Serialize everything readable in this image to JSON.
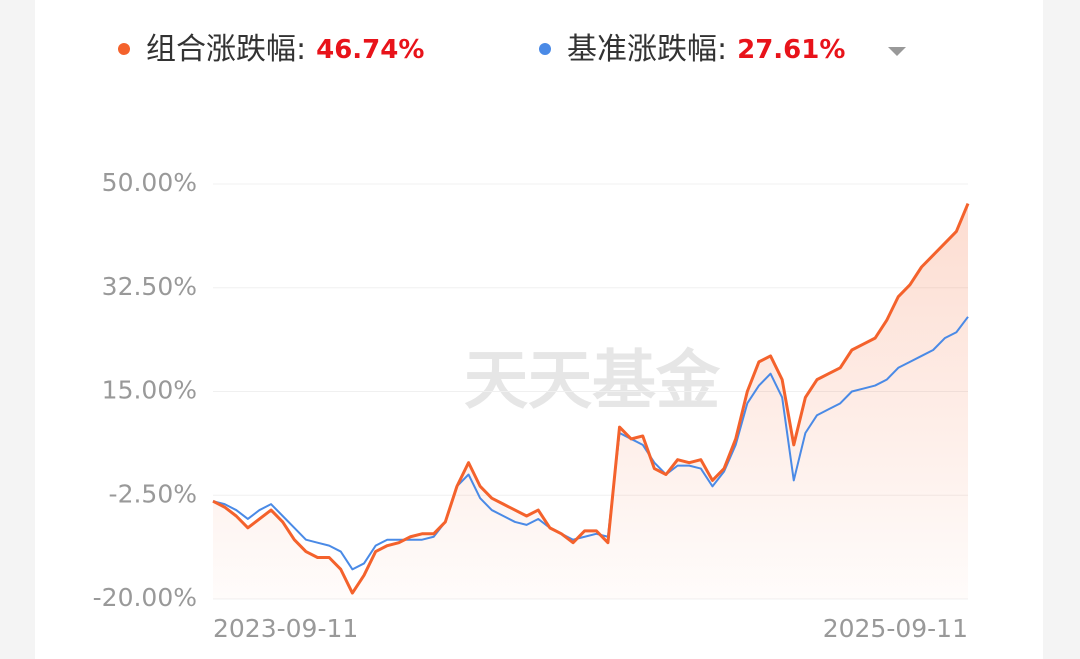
{
  "chart_data": {
    "type": "line",
    "watermark": "天天基金",
    "categories": [
      "2023-09-11",
      null,
      null,
      null,
      null,
      null,
      null,
      null,
      null,
      null,
      null,
      null,
      null,
      null,
      null,
      null,
      null,
      null,
      null,
      null,
      null,
      null,
      null,
      null,
      null,
      null,
      null,
      null,
      null,
      null,
      null,
      null,
      null,
      null,
      null,
      null,
      null,
      null,
      null,
      null,
      null,
      null,
      null,
      null,
      null,
      null,
      null,
      null,
      null,
      null,
      null,
      null,
      null,
      null,
      null,
      null,
      null,
      null,
      null,
      null,
      null,
      null,
      null,
      null,
      null,
      "2025-09-11"
    ],
    "series": [
      {
        "name": "组合涨跌幅:",
        "summary_label": "46.74%",
        "color": "#f4622c",
        "values": [
          -3.5,
          -4.5,
          -6,
          -8,
          -6.5,
          -5,
          -7,
          -10,
          -12,
          -13,
          -13,
          -15,
          -19,
          -16,
          -12,
          -11,
          -10.5,
          -9.5,
          -9,
          -9,
          -7,
          -1,
          3,
          -1,
          -3,
          -4,
          -5,
          -6,
          -5,
          -8,
          -9,
          -10.5,
          -8.5,
          -8.5,
          -10.5,
          9,
          7,
          7.5,
          2,
          1,
          3.5,
          3,
          3.5,
          0,
          2,
          7,
          15,
          20,
          21,
          17,
          6,
          14,
          17,
          18,
          19,
          22,
          23,
          24,
          27,
          31,
          33,
          36,
          38,
          40,
          42,
          46.7
        ]
      },
      {
        "name": "基准涨跌幅:",
        "summary_label": "27.61%",
        "color": "#4a8ae6",
        "values": [
          -3.5,
          -4,
          -5,
          -6.5,
          -5,
          -4,
          -6,
          -8,
          -10,
          -10.5,
          -11,
          -12,
          -15,
          -14,
          -11,
          -10,
          -10,
          -10,
          -10,
          -9.5,
          -7,
          -1,
          1,
          -3,
          -5,
          -6,
          -7,
          -7.5,
          -6.5,
          -8,
          -9,
          -10,
          -9.5,
          -9,
          -9.5,
          8,
          7,
          6,
          3,
          1,
          2.5,
          2.5,
          2,
          -1,
          1.5,
          6,
          13,
          16,
          18,
          14,
          0,
          8,
          11,
          12,
          13,
          15,
          15.5,
          16,
          17,
          19,
          20,
          21,
          22,
          24,
          25,
          27.6
        ]
      }
    ],
    "ylim": [
      -20,
      50
    ],
    "yticks": [
      {
        "value": -20,
        "label": "-20.00%"
      },
      {
        "value": -2.5,
        "label": "-2.50%"
      },
      {
        "value": 15,
        "label": "15.00%"
      },
      {
        "value": 32.5,
        "label": "32.50%"
      },
      {
        "value": 50,
        "label": "50.00%"
      }
    ],
    "grid": true,
    "area_under": 0
  }
}
